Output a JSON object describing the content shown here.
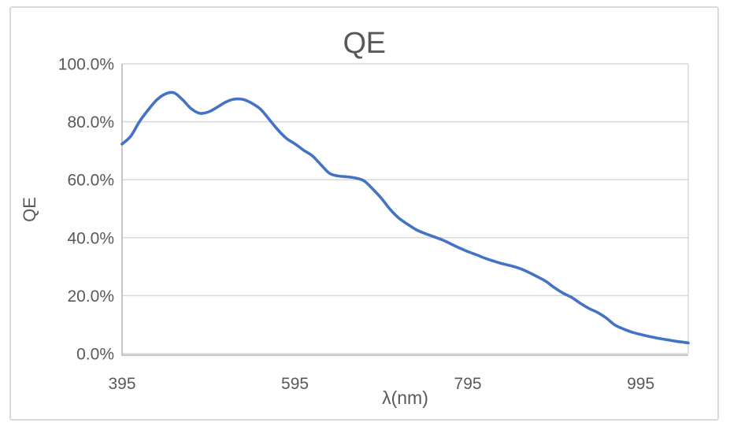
{
  "chart": {
    "title": "QE",
    "y_axis_title": "QE",
    "x_axis_title": "λ(nm)"
  },
  "colors": {
    "line": "#4472C4",
    "gridline": "#D9D9D9",
    "axis_line": "#BFBFBF",
    "text": "#595959",
    "card_border": "#D9D9D9",
    "background": "#FFFFFF"
  },
  "chart_data": {
    "type": "line",
    "title": "QE",
    "xlabel": "λ(nm)",
    "ylabel": "QE",
    "legend": "none",
    "grid": "horizontal",
    "x_range": [
      395,
      1050
    ],
    "y_range": [
      0,
      100
    ],
    "x_ticks": [
      395,
      595,
      795,
      995
    ],
    "x_tick_labels": [
      "395",
      "595",
      "795",
      "995"
    ],
    "y_ticks": [
      0,
      20,
      40,
      60,
      80,
      100
    ],
    "y_tick_labels": [
      "0.0%",
      "20.0%",
      "40.0%",
      "60.0%",
      "80.0%",
      "100.0%"
    ],
    "series": [
      {
        "name": "QE",
        "x_nm": [
          395,
          405,
          415,
          425,
          435,
          445,
          455,
          465,
          475,
          485,
          495,
          505,
          515,
          525,
          535,
          545,
          555,
          565,
          575,
          585,
          595,
          605,
          615,
          625,
          635,
          645,
          655,
          665,
          675,
          685,
          695,
          705,
          715,
          725,
          735,
          745,
          755,
          765,
          775,
          785,
          795,
          805,
          815,
          825,
          835,
          845,
          855,
          865,
          875,
          885,
          895,
          905,
          915,
          925,
          935,
          945,
          955,
          965,
          975,
          985,
          995,
          1005,
          1015,
          1025,
          1035,
          1045,
          1050
        ],
        "qe_percent": [
          72.3,
          75.0,
          80.0,
          84.0,
          87.5,
          89.6,
          90.0,
          87.6,
          84.5,
          82.9,
          83.4,
          85.0,
          86.8,
          87.8,
          87.7,
          86.4,
          84.4,
          80.9,
          77.3,
          74.3,
          72.4,
          70.2,
          68.3,
          65.2,
          62.2,
          61.3,
          61.0,
          60.6,
          59.6,
          56.8,
          53.6,
          49.8,
          46.8,
          44.7,
          42.8,
          41.5,
          40.4,
          39.3,
          37.9,
          36.5,
          35.2,
          34.1,
          32.9,
          31.9,
          31.0,
          30.3,
          29.4,
          28.1,
          26.6,
          25.0,
          22.8,
          20.9,
          19.4,
          17.4,
          15.6,
          14.2,
          12.3,
          9.9,
          8.5,
          7.4,
          6.6,
          5.9,
          5.3,
          4.8,
          4.3,
          3.9,
          3.7
        ]
      }
    ]
  }
}
